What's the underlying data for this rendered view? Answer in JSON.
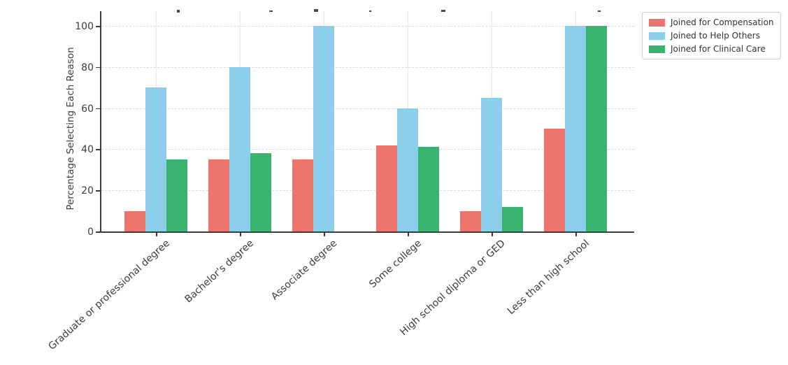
{
  "chart_data": {
    "type": "bar",
    "categories": [
      "Graduate or professional degree",
      "Bachelor's degree",
      "Associate degree",
      "Some college",
      "High school diploma or GED",
      "Less than high school"
    ],
    "series": [
      {
        "name": "Joined for Compensation",
        "color": "#ec766e",
        "values": [
          10,
          35,
          35,
          42,
          10,
          50
        ]
      },
      {
        "name": "Joined to Help Others",
        "color": "#8bcfea",
        "values": [
          70,
          80,
          100,
          60,
          65,
          100
        ]
      },
      {
        "name": "Joined for Clinical Care",
        "color": "#3ab370",
        "values": [
          35,
          38,
          0,
          41,
          12,
          100
        ]
      }
    ],
    "ylabel": "Percentage Selecting Each Reason",
    "xlabel": "",
    "ylim": [
      0,
      100
    ],
    "yticks": [
      0,
      20,
      40,
      60,
      80,
      100
    ],
    "grid": true,
    "legend_position": "upper-right-outside",
    "title_clipped_offscreen": true
  }
}
